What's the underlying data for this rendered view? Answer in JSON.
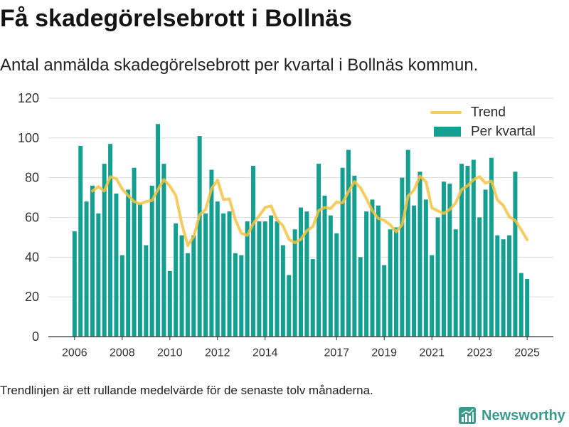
{
  "chart_data": {
    "type": "bar",
    "title": "Få skadegörelsebrott i Bollnäs",
    "subtitle": "Antal anmälda skadegörelsebrott per kvartal i Bollnäs kommun.",
    "x": [
      2006,
      2006.25,
      2006.5,
      2006.75,
      2007,
      2007.25,
      2007.5,
      2007.75,
      2008,
      2008.25,
      2008.5,
      2008.75,
      2009,
      2009.25,
      2009.5,
      2009.75,
      2010,
      2010.25,
      2010.5,
      2010.75,
      2011,
      2011.25,
      2011.5,
      2011.75,
      2012,
      2012.25,
      2012.5,
      2012.75,
      2013,
      2013.25,
      2013.5,
      2013.75,
      2014,
      2014.25,
      2014.5,
      2014.75,
      2015,
      2015.25,
      2015.5,
      2015.75,
      2016,
      2016.25,
      2016.5,
      2016.75,
      2017,
      2017.25,
      2017.5,
      2017.75,
      2018,
      2018.25,
      2018.5,
      2018.75,
      2019,
      2019.25,
      2019.5,
      2019.75,
      2020,
      2020.25,
      2020.5,
      2020.75,
      2021,
      2021.25,
      2021.5,
      2021.75,
      2022,
      2022.25,
      2022.5,
      2022.75,
      2023,
      2023.25,
      2023.5,
      2023.75,
      2024,
      2024.25,
      2024.5,
      2024.75,
      2025
    ],
    "series": [
      {
        "name": "Per kvartal",
        "type": "bar",
        "color": "#13a090",
        "values": [
          53,
          96,
          68,
          76,
          62,
          87,
          97,
          72,
          41,
          74,
          85,
          67,
          46,
          76,
          107,
          87,
          33,
          57,
          51,
          42,
          51,
          101,
          62,
          84,
          68,
          62,
          63,
          42,
          41,
          58,
          86,
          58,
          58,
          61,
          58,
          46,
          31,
          54,
          65,
          63,
          39,
          87,
          71,
          61,
          52,
          85,
          94,
          81,
          40,
          63,
          69,
          66,
          36,
          54,
          55,
          80,
          94,
          66,
          83,
          69,
          41,
          60,
          78,
          77,
          54,
          87,
          86,
          89,
          60,
          74,
          90,
          51,
          49,
          51,
          83,
          32,
          29
        ]
      },
      {
        "name": "Trend",
        "type": "line",
        "color": "#f5c243",
        "values": [
          null,
          null,
          null,
          73.3,
          75.5,
          73.3,
          80.5,
          79.5,
          74.3,
          71,
          68,
          66.8,
          68,
          68.5,
          74,
          79,
          75.8,
          71,
          57,
          45.8,
          50.3,
          61.3,
          64,
          74.5,
          78.8,
          69,
          69.3,
          58.8,
          52,
          51,
          56.8,
          60.8,
          65,
          65.8,
          58.8,
          55.8,
          49,
          47.3,
          49,
          53.3,
          55.3,
          63.5,
          65,
          64.5,
          67.8,
          67.3,
          73,
          78,
          75,
          69.5,
          63.3,
          59.5,
          58.5,
          56.3,
          52.8,
          56.3,
          70.8,
          73.8,
          80.8,
          78,
          64.8,
          63.3,
          62,
          64,
          67.3,
          74,
          76,
          79,
          80.5,
          77.3,
          78.3,
          68.8,
          66,
          60.3,
          58.5,
          53.8,
          48.8
        ]
      }
    ],
    "xticks": [
      2006,
      2008,
      2010,
      2012,
      2014,
      2017,
      2019,
      2021,
      2023,
      2025
    ],
    "yticks": [
      0,
      20,
      40,
      60,
      80,
      100,
      120
    ],
    "xlim": [
      2004.9,
      2026.1
    ],
    "ylim": [
      0,
      120
    ],
    "grid": "horizontal",
    "legend": "top-right"
  },
  "footnote": "Trendlinjen är ett rullande medelvärde för de senaste tolv månaderna.",
  "brand": {
    "name": "Newsworthy",
    "color": "#3a9a8c",
    "icon": "bar-chart-logo-icon"
  }
}
